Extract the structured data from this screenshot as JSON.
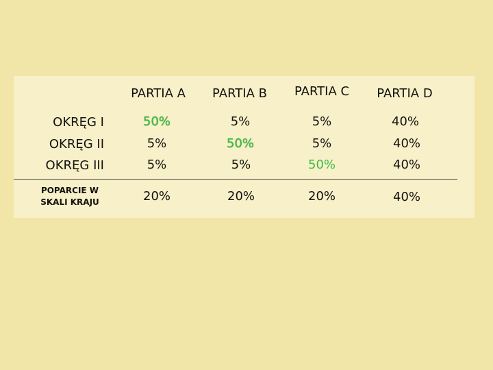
{
  "table": {
    "headers": [
      "PARTIA A",
      "PARTIA B",
      "PARTIA C",
      "PARTIA D"
    ],
    "rows": [
      {
        "label": "OKRĘG I",
        "values": [
          "50%",
          "5%",
          "5%",
          "40%"
        ]
      },
      {
        "label": "OKRĘG II",
        "values": [
          "5%",
          "50%",
          "5%",
          "40%"
        ]
      },
      {
        "label": "OKRĘG III",
        "values": [
          "5%",
          "5%",
          "50%",
          "40%"
        ]
      }
    ],
    "national": {
      "label_line1": "POPARCIE W",
      "label_line2": "SKALI KRAJU",
      "values": [
        "20%",
        "20%",
        "20%",
        "40%"
      ]
    }
  },
  "colors": {
    "background": "#f1e6a8",
    "panel": "#f8f0c8",
    "highlight": "#3dbb44"
  }
}
